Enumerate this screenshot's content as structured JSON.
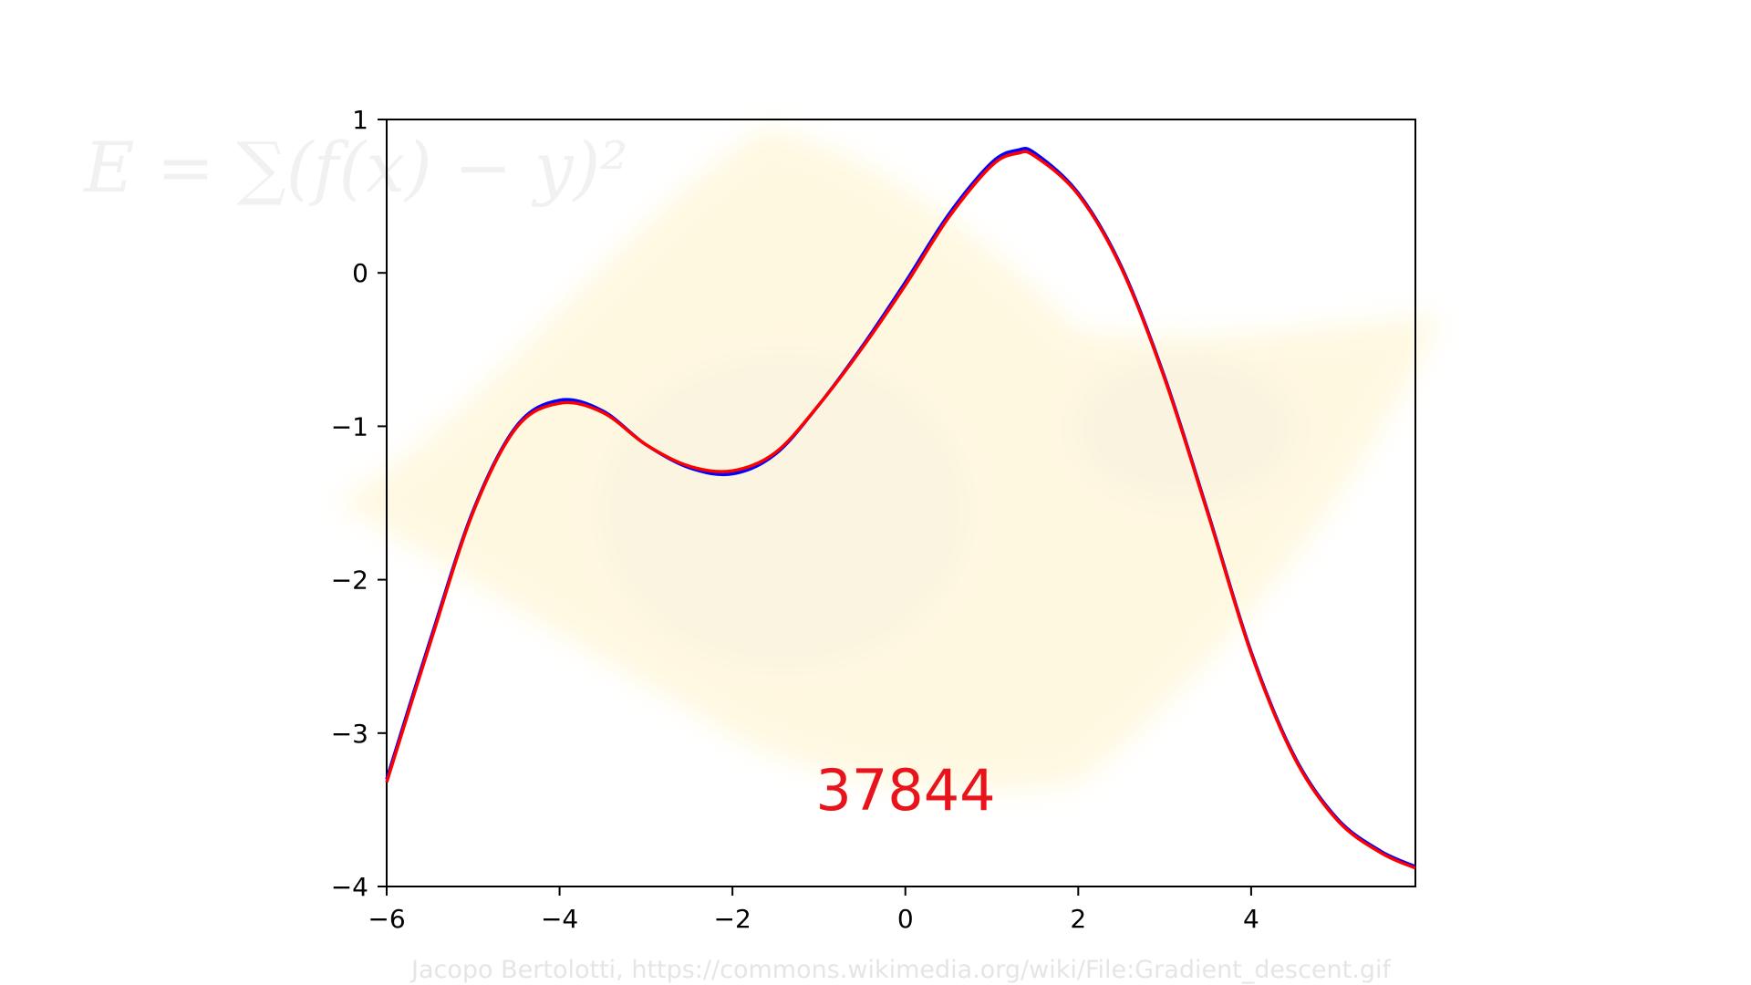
{
  "watermark": {
    "formula": "E = ∑(f(x) − y)²",
    "credit": "Jacopo Bertolotti, https://commons.wikimedia.org/wiki/File:Gradient_descent.gif"
  },
  "counter": {
    "text": "37844",
    "color": "#e8141c"
  },
  "colors": {
    "target": "#0000ff",
    "fit": "#ff0000",
    "surface": "#fff6d6"
  },
  "chart_data": {
    "type": "line",
    "title": "",
    "xlabel": "",
    "ylabel": "",
    "xlim": [
      -6,
      5.9
    ],
    "ylim": [
      -4,
      1
    ],
    "xticks": [
      -6,
      -4,
      -2,
      0,
      2,
      4
    ],
    "yticks": [
      -4,
      -3,
      -2,
      -1,
      0,
      1
    ],
    "xtick_labels": [
      "−6",
      "−4",
      "−2",
      "0",
      "2",
      "4"
    ],
    "ytick_labels": [
      "−4",
      "−3",
      "−2",
      "−1",
      "0",
      "1"
    ],
    "grid": false,
    "series": [
      {
        "color": "#0000ff",
        "x": [
          -6,
          -5.5,
          -5,
          -4.5,
          -4,
          -3.5,
          -3,
          -2.5,
          -2,
          -1.5,
          -1,
          -0.5,
          0,
          0.5,
          1,
          1.3,
          1.5,
          2,
          2.5,
          3,
          3.5,
          4,
          4.5,
          5,
          5.5,
          5.9
        ],
        "y": [
          -3.3,
          -2.4,
          -1.55,
          -1.0,
          -0.83,
          -0.9,
          -1.12,
          -1.27,
          -1.31,
          -1.18,
          -0.86,
          -0.48,
          -0.06,
          0.38,
          0.72,
          0.8,
          0.78,
          0.52,
          0.04,
          -0.68,
          -1.56,
          -2.47,
          -3.15,
          -3.56,
          -3.77,
          -3.87
        ]
      },
      {
        "color": "#ff0000",
        "x": [
          -6,
          -5.5,
          -5,
          -4.5,
          -4,
          -3.5,
          -3,
          -2.5,
          -2,
          -1.5,
          -1,
          -0.5,
          0,
          0.5,
          1,
          1.3,
          1.5,
          2,
          2.5,
          3,
          3.5,
          4,
          4.5,
          5,
          5.5,
          5.9
        ],
        "y": [
          -3.32,
          -2.42,
          -1.56,
          -1.01,
          -0.85,
          -0.91,
          -1.12,
          -1.26,
          -1.29,
          -1.17,
          -0.86,
          -0.49,
          -0.08,
          0.36,
          0.7,
          0.78,
          0.76,
          0.51,
          0.03,
          -0.69,
          -1.57,
          -2.48,
          -3.16,
          -3.57,
          -3.78,
          -3.88
        ]
      }
    ]
  }
}
